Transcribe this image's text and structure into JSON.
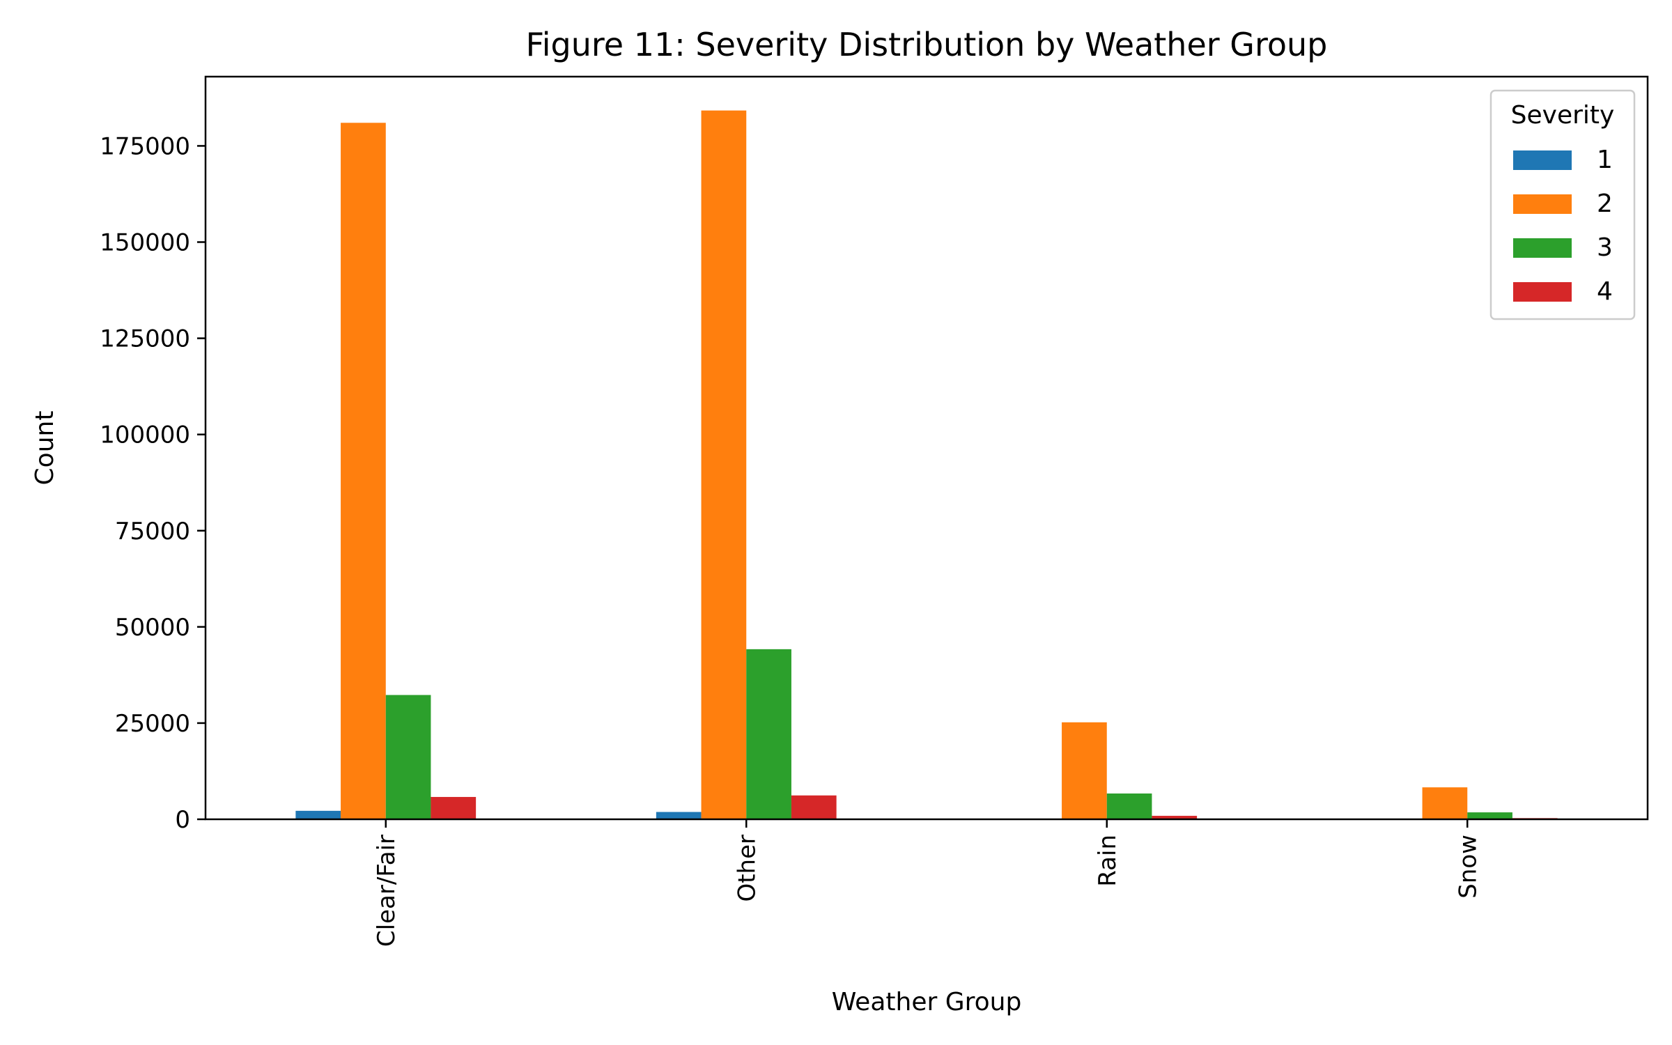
{
  "chart_data": {
    "type": "bar",
    "title": "Figure 11: Severity Distribution by Weather Group",
    "xlabel": "Weather Group",
    "ylabel": "Count",
    "categories": [
      "Clear/Fair",
      "Other",
      "Rain",
      "Snow"
    ],
    "series": [
      {
        "name": "1",
        "values": [
          2200,
          1900,
          150,
          60
        ],
        "color": "#1f77b4"
      },
      {
        "name": "2",
        "values": [
          181000,
          184200,
          25200,
          8300
        ],
        "color": "#ff7f0e"
      },
      {
        "name": "3",
        "values": [
          32300,
          44200,
          6700,
          1800
        ],
        "color": "#2ca02c"
      },
      {
        "name": "4",
        "values": [
          5800,
          6200,
          900,
          300
        ],
        "color": "#d62728"
      }
    ],
    "ylim": [
      0,
      193000
    ],
    "yticks": [
      0,
      25000,
      50000,
      75000,
      100000,
      125000,
      150000,
      175000
    ],
    "legend": {
      "title": "Severity",
      "position": "top-right"
    },
    "grid": false
  }
}
